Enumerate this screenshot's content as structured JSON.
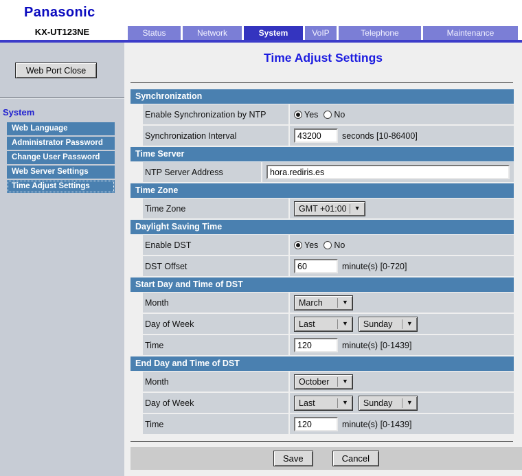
{
  "header": {
    "logo": "Panasonic",
    "model": "KX-UT123NE"
  },
  "tabs": [
    {
      "label": "Status",
      "active": false
    },
    {
      "label": "Network",
      "active": false
    },
    {
      "label": "System",
      "active": true
    },
    {
      "label": "VoIP",
      "active": false
    },
    {
      "label": "Telephone",
      "active": false
    },
    {
      "label": "Maintenance",
      "active": false
    }
  ],
  "sidebar": {
    "web_port_close_label": "Web Port Close",
    "section_title": "System",
    "items": [
      {
        "label": "Web Language",
        "selected": false
      },
      {
        "label": "Administrator Password",
        "selected": false
      },
      {
        "label": "Change User Password",
        "selected": false
      },
      {
        "label": "Web Server Settings",
        "selected": false
      },
      {
        "label": "Time Adjust Settings",
        "selected": true
      }
    ]
  },
  "main": {
    "title": "Time Adjust Settings",
    "sections": [
      {
        "title": "Synchronization",
        "rows": [
          {
            "label": "Enable Synchronization by NTP",
            "control": {
              "type": "radio",
              "options": [
                "Yes",
                "No"
              ],
              "selected": "Yes"
            }
          },
          {
            "label": "Synchronization Interval",
            "control": {
              "type": "input",
              "value": "43200",
              "unit": "seconds [10-86400]"
            }
          }
        ]
      },
      {
        "title": "Time Server",
        "rows": [
          {
            "label": "NTP Server Address",
            "control": {
              "type": "input",
              "value": "hora.rediris.es",
              "wide": true
            }
          }
        ]
      },
      {
        "title": "Time Zone",
        "rows": [
          {
            "label": "Time Zone",
            "control": {
              "type": "selects",
              "values": [
                "GMT +01:00"
              ]
            }
          }
        ]
      },
      {
        "title": "Daylight Saving Time",
        "rows": [
          {
            "label": "Enable DST",
            "control": {
              "type": "radio",
              "options": [
                "Yes",
                "No"
              ],
              "selected": "Yes"
            }
          },
          {
            "label": "DST Offset",
            "control": {
              "type": "input",
              "value": "60",
              "unit": "minute(s) [0-720]"
            }
          }
        ]
      },
      {
        "title": "Start Day and Time of DST",
        "rows": [
          {
            "label": "Month",
            "control": {
              "type": "selects",
              "values": [
                "March"
              ]
            }
          },
          {
            "label": "Day of Week",
            "control": {
              "type": "selects",
              "values": [
                "Last",
                "Sunday"
              ]
            }
          },
          {
            "label": "Time",
            "control": {
              "type": "input",
              "value": "120",
              "unit": "minute(s) [0-1439]"
            }
          }
        ]
      },
      {
        "title": "End Day and Time of DST",
        "rows": [
          {
            "label": "Month",
            "control": {
              "type": "selects",
              "values": [
                "October"
              ]
            }
          },
          {
            "label": "Day of Week",
            "control": {
              "type": "selects",
              "values": [
                "Last",
                "Sunday"
              ]
            }
          },
          {
            "label": "Time",
            "control": {
              "type": "input",
              "value": "120",
              "unit": "minute(s) [0-1439]"
            }
          }
        ]
      }
    ],
    "save_label": "Save",
    "cancel_label": "Cancel"
  },
  "icons": {
    "dropdown_arrow": "▼"
  },
  "colors": {
    "section_header_blue": "#4A80B0",
    "tab_active_blue": "#3434BF",
    "tab_inactive_blue": "#7B7ED6",
    "title_blue": "#1C1CE0",
    "logo_blue": "#0B0BBF",
    "row_cell_gray": "#CDD2D8",
    "sidebar_gray": "#C7CCD5",
    "content_gray": "#EFEFEF"
  }
}
